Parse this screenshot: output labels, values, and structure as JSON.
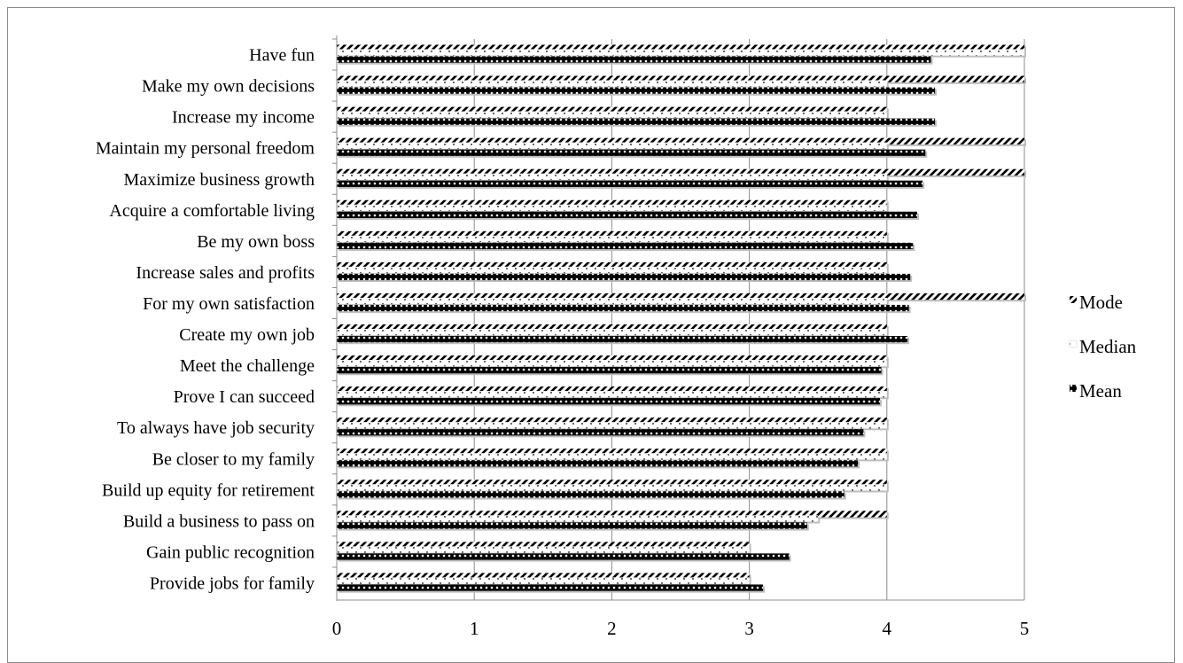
{
  "chart_data": {
    "type": "bar",
    "orientation": "horizontal",
    "categories": [
      "Have fun",
      "Make my own decisions",
      "Increase my income",
      "Maintain my personal freedom",
      "Maximize business growth",
      "Acquire a comfortable living",
      "Be my own boss",
      "Increase sales and profits",
      "For my own satisfaction",
      "Create my own job",
      "Meet the challenge",
      "Prove I can succeed",
      "To always have job security",
      "Be closer to my family",
      "Build up equity for retirement",
      "Build a business to pass on",
      "Gain public recognition",
      "Provide jobs for family"
    ],
    "series": [
      {
        "name": "Mode",
        "values": [
          5,
          5,
          4,
          5,
          5,
          4,
          4,
          4,
          5,
          4,
          4,
          4,
          4,
          4,
          4,
          4,
          3,
          3
        ]
      },
      {
        "name": "Median",
        "values": [
          5,
          4,
          4,
          4,
          4,
          4,
          4,
          4,
          4,
          4,
          4,
          4,
          4,
          4,
          4,
          3.5,
          3,
          3
        ]
      },
      {
        "name": "Mean",
        "values": [
          4.32,
          4.35,
          4.35,
          4.28,
          4.26,
          4.22,
          4.19,
          4.17,
          4.16,
          4.15,
          3.96,
          3.95,
          3.83,
          3.79,
          3.69,
          3.42,
          3.29,
          3.1
        ]
      }
    ],
    "xlim": [
      0,
      5
    ],
    "xticks": [
      "0",
      "1",
      "2",
      "3",
      "4",
      "5"
    ],
    "grid": "vertical",
    "legend_position": "right",
    "title": "",
    "xlabel": "",
    "ylabel": ""
  }
}
